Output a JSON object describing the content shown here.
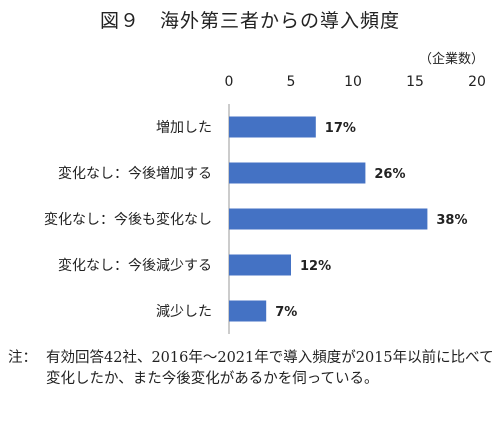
{
  "chart_data": {
    "type": "bar",
    "orientation": "horizontal",
    "title": "図９　海外第三者からの導入頻度",
    "unit": "（企業数）",
    "categories": [
      "増加した",
      "変化なし：今後増加する",
      "変化なし：今後も変化なし",
      "変化なし：今後減少する",
      "減少した"
    ],
    "values": [
      7,
      11,
      16,
      5,
      3
    ],
    "data_labels": [
      "17%",
      "26%",
      "38%",
      "12%",
      "7%"
    ],
    "xlim": [
      0,
      20
    ],
    "xticks": [
      "0",
      "5",
      "10",
      "15",
      "20"
    ],
    "grid": false,
    "bar_color": "#4472c4"
  },
  "footnote": {
    "prefix": "注：",
    "text": "有効回答42社、2016年～2021年で導入頻度が2015年以前に比べて変化したか、また今後変化があるかを伺っている。"
  }
}
